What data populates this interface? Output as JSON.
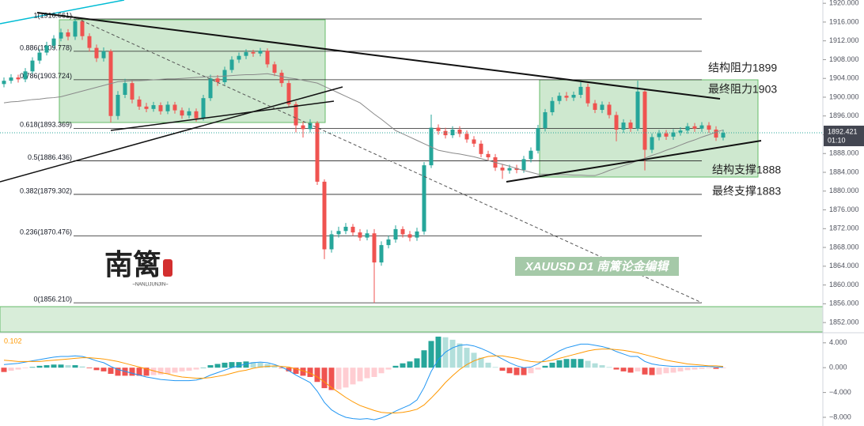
{
  "chart_data": [
    {
      "type": "candlestick",
      "up_color": "#26a69a",
      "down_color": "#ef5350",
      "ma_color": "#8a8a8a",
      "ylim": [
        1850,
        1920.7
      ],
      "yticks": [
        {
          "value": 1920,
          "label": "1920.000"
        },
        {
          "value": 1916,
          "label": "1916.000"
        },
        {
          "value": 1912,
          "label": "1912.000"
        },
        {
          "value": 1908,
          "label": "1908.000"
        },
        {
          "value": 1904,
          "label": "1904.000"
        },
        {
          "value": 1900,
          "label": "1900.000"
        },
        {
          "value": 1896,
          "label": "1896.000"
        },
        {
          "value": 1892,
          "label": "1892.000"
        },
        {
          "value": 1888,
          "label": "1888.000"
        },
        {
          "value": 1884,
          "label": "1884.000"
        },
        {
          "value": 1880,
          "label": "1880.000"
        },
        {
          "value": 1876,
          "label": "1876.000"
        },
        {
          "value": 1872,
          "label": "1872.000"
        },
        {
          "value": 1868,
          "label": "1868.000"
        },
        {
          "value": 1864,
          "label": "1864.000"
        },
        {
          "value": 1860,
          "label": "1860.000"
        },
        {
          "value": 1856,
          "label": "1856.000"
        },
        {
          "value": 1852,
          "label": "1852.000"
        }
      ],
      "last_price": 1892.421,
      "countdown": "01:10",
      "fib_levels": [
        {
          "label": "1(1916.661)",
          "price": 1916.661
        },
        {
          "label": "0.886(1909.778)",
          "price": 1909.778
        },
        {
          "label": "0.786(1903.724)",
          "price": 1903.724
        },
        {
          "label": "0.618(1893.369)",
          "price": 1893.369
        },
        {
          "label": "0.5(1886.436)",
          "price": 1886.436
        },
        {
          "label": "0.382(1879.302)",
          "price": 1879.302
        },
        {
          "label": "0.236(1870.476)",
          "price": 1870.476
        },
        {
          "label": "0(1856.210)",
          "price": 1856.21
        }
      ],
      "annotations": [
        "结构阻力1899",
        "最终阻力1903",
        "结构支撑1888",
        "最终支撑1883"
      ],
      "watermark": "XAUUSD  D1  南篱论金编辑",
      "logo": "南篱",
      "logo_sub": "~NANLIJUNJIN~",
      "open": [
        1902.8,
        1903.5,
        1904.2,
        1903.8,
        1905.5,
        1907.8,
        1909.5,
        1911,
        1912.5,
        1913.8,
        1912.9,
        1916.2,
        1913,
        1910.5,
        1908.3,
        1909.8,
        1896,
        1900.5,
        1903,
        1899.5,
        1898,
        1897.5,
        1898.3,
        1897,
        1898.4,
        1897.2,
        1896.1,
        1897,
        1895.5,
        1899.8,
        1904,
        1903.2,
        1905.8,
        1908,
        1908.8,
        1909.6,
        1909.3,
        1909.9,
        1907,
        1905.2,
        1903,
        1898.5,
        1894,
        1893.2,
        1894.5,
        1882,
        1867.6,
        1870.8,
        1871.5,
        1872.4,
        1871.2,
        1870.1,
        1871,
        1864.8,
        1868.5,
        1869.7,
        1871.9,
        1870.8,
        1870.1,
        1871.4,
        1885.5,
        1893.5,
        1892.8,
        1891.9,
        1893.1,
        1892.2,
        1891,
        1890.1,
        1887.9,
        1887.2,
        1885,
        1884.4,
        1884.9,
        1884.5,
        1886.8,
        1888.6,
        1893.4,
        1896.8,
        1899.2,
        1900.3,
        1899.9,
        1900.5,
        1902.2,
        1898.7,
        1897.3,
        1898.4,
        1896.2,
        1893.1,
        1894.6,
        1893.3,
        1901.2,
        1888.8,
        1891.5,
        1892.3,
        1891.6,
        1892.5,
        1892.9,
        1893.8,
        1893.3,
        1894,
        1893.1,
        1891.4
      ],
      "high": [
        1904.2,
        1904.9,
        1904.8,
        1906.2,
        1908.5,
        1910.3,
        1911.8,
        1913.2,
        1914.6,
        1914.5,
        1916.661,
        1916.5,
        1913.6,
        1911.2,
        1910.6,
        1910.2,
        1901.3,
        1903.9,
        1903.6,
        1900.2,
        1898.8,
        1899,
        1898.9,
        1899.1,
        1899,
        1897.8,
        1897.7,
        1897.6,
        1900.5,
        1904.8,
        1904.7,
        1906.5,
        1908.7,
        1909.5,
        1910.2,
        1910.1,
        1910.5,
        1910.4,
        1907.6,
        1905.8,
        1903.6,
        1899.1,
        1894.8,
        1895.3,
        1894.9,
        1882.5,
        1871.6,
        1872.4,
        1873.2,
        1873,
        1871.9,
        1871.8,
        1871.9,
        1869.3,
        1870.5,
        1872.7,
        1872.5,
        1871.5,
        1872.2,
        1886.2,
        1896.3,
        1894.2,
        1893.5,
        1893.8,
        1893.8,
        1892.9,
        1891.7,
        1890.8,
        1888.6,
        1887.9,
        1885.7,
        1885.6,
        1885.6,
        1887.5,
        1889.3,
        1894.1,
        1897.5,
        1900,
        1901,
        1901.1,
        1901.2,
        1903.2,
        1902.9,
        1899.4,
        1899.1,
        1899,
        1896.9,
        1895.3,
        1895.2,
        1903.5,
        1901.8,
        1892.3,
        1893,
        1893,
        1893.2,
        1893.6,
        1894.5,
        1894.5,
        1894.7,
        1894.7,
        1893.8,
        1893.1
      ],
      "low": [
        1902.1,
        1902.9,
        1903.1,
        1903.2,
        1905,
        1907.1,
        1908.9,
        1910.3,
        1911.9,
        1912.1,
        1912.2,
        1912.2,
        1909.7,
        1907.5,
        1907.6,
        1894.6,
        1895.2,
        1899.8,
        1898.7,
        1897.3,
        1896.8,
        1896.9,
        1896.3,
        1896.4,
        1896.5,
        1895.4,
        1895.5,
        1894.8,
        1895,
        1899.2,
        1902.4,
        1902.6,
        1905.2,
        1907.3,
        1908.1,
        1908.6,
        1908.7,
        1906.3,
        1904.5,
        1902.2,
        1897.8,
        1892.5,
        1891.4,
        1892.5,
        1881.3,
        1865.5,
        1866.9,
        1870.1,
        1870.8,
        1870.5,
        1869.4,
        1869.5,
        1856.21,
        1864.1,
        1867.8,
        1869,
        1870.1,
        1869.3,
        1869.4,
        1870.7,
        1884.9,
        1892,
        1891.2,
        1891.3,
        1891.5,
        1890.3,
        1889.4,
        1887.2,
        1886.5,
        1884.3,
        1882.6,
        1883.7,
        1883.8,
        1883.9,
        1886.1,
        1888,
        1892.7,
        1896.1,
        1898.5,
        1899.2,
        1899.2,
        1899.8,
        1898,
        1896.6,
        1896.6,
        1895.5,
        1890.6,
        1892.4,
        1892.6,
        1892.8,
        1884.4,
        1888.1,
        1890.8,
        1890.9,
        1890.9,
        1891.8,
        1892.2,
        1892.6,
        1892.6,
        1892.4,
        1890.7,
        1890.8
      ],
      "close": [
        1903.5,
        1904.2,
        1903.8,
        1905.5,
        1907.8,
        1909.5,
        1911,
        1912.5,
        1913.8,
        1912.9,
        1916.2,
        1913,
        1910.5,
        1908.3,
        1909.8,
        1896,
        1900.5,
        1903,
        1899.5,
        1898,
        1897.5,
        1898.3,
        1897,
        1898.4,
        1897.2,
        1896.1,
        1897,
        1895.5,
        1899.8,
        1904,
        1903.2,
        1905.8,
        1908,
        1908.8,
        1909.6,
        1909.3,
        1909.9,
        1907,
        1905.2,
        1903,
        1898.5,
        1894,
        1893.2,
        1894.5,
        1882,
        1867.6,
        1870.8,
        1871.5,
        1872.4,
        1871.2,
        1870.1,
        1871,
        1864.8,
        1868.5,
        1869.7,
        1871.9,
        1870.8,
        1870.1,
        1871.4,
        1885.5,
        1893.5,
        1892.8,
        1891.9,
        1893.1,
        1892.2,
        1891,
        1890.1,
        1887.9,
        1887.2,
        1885,
        1884.4,
        1884.9,
        1884.5,
        1886.8,
        1888.6,
        1893.4,
        1896.8,
        1899.2,
        1900.3,
        1899.9,
        1900.5,
        1902.2,
        1898.7,
        1897.3,
        1898.4,
        1896.2,
        1893.1,
        1894.6,
        1893.3,
        1901.2,
        1888.8,
        1891.5,
        1892.3,
        1891.6,
        1892.5,
        1892.9,
        1893.8,
        1893.3,
        1894,
        1893.1,
        1891.4,
        1892.4
      ],
      "ma_values": [
        1898.8,
        1899,
        1899.1,
        1899.3,
        1899.5,
        1899.6,
        1899.8,
        1899.9,
        1900.1,
        1900.5,
        1900.9,
        1901.3,
        1901.7,
        1902.1,
        1902.5,
        1902.9,
        1903.3,
        1903.4,
        1903.5,
        1903.5,
        1903.6,
        1903.7,
        1903.8,
        1903.9,
        1903.9,
        1904,
        1904.1,
        1904.2,
        1904.3,
        1904.4,
        1904.4,
        1904.5,
        1904.6,
        1904.7,
        1904.8,
        1904.8,
        1904.9,
        1905,
        1904.7,
        1904.4,
        1904.1,
        1903.9,
        1903.6,
        1903.3,
        1903,
        1902.3,
        1901.6,
        1900.9,
        1900.2,
        1899.5,
        1898.8,
        1897.6,
        1896.4,
        1895.3,
        1894.1,
        1892.9,
        1892.2,
        1891.5,
        1890.8,
        1890.1,
        1889.4,
        1888.7,
        1888.4,
        1888.1,
        1887.9,
        1887.6,
        1887.3,
        1886.9,
        1886.5,
        1886.1,
        1885.7,
        1885.3,
        1884.8,
        1884.4,
        1884,
        1883.6,
        1883.6,
        1883.5,
        1883.5,
        1883.5,
        1883.4,
        1883.4,
        1883.3,
        1883.3,
        1883.8,
        1884.4,
        1884.9,
        1885.4,
        1885.9,
        1886.5,
        1887,
        1887.6,
        1888.1,
        1888.7,
        1889.2,
        1889.8,
        1890.4,
        1890.9,
        1891.5,
        1892,
        1892.6,
        1893
      ]
    },
    {
      "type": "macd",
      "value_label": 0.102,
      "ylim": [
        -9.4,
        5.5
      ],
      "yticks": [
        {
          "value": 4,
          "label": "4.000"
        },
        {
          "value": 0,
          "label": "0.000"
        },
        {
          "value": -4,
          "label": "−4.000"
        },
        {
          "value": -8,
          "label": "−8.000"
        }
      ],
      "macd_color": "#2196f3",
      "signal_color": "#ff9800",
      "hist_colors": [
        "#26a69a",
        "#b2dfdb",
        "#ffcdd2",
        "#ef5350"
      ],
      "macd": [
        0.5,
        0.6,
        0.7,
        0.9,
        1.1,
        1.3,
        1.5,
        1.7,
        1.8,
        1.8,
        1.9,
        1.8,
        1.5,
        1.1,
        0.8,
        0.2,
        -0.3,
        -0.6,
        -0.9,
        -1.2,
        -1.5,
        -1.7,
        -1.9,
        -2,
        -2.1,
        -2.1,
        -2.1,
        -2,
        -1.7,
        -1.2,
        -0.8,
        -0.4,
        0,
        0.3,
        0.6,
        0.8,
        0.9,
        0.8,
        0.5,
        0.1,
        -0.5,
        -1.2,
        -1.8,
        -2.4,
        -3.8,
        -5.6,
        -6.8,
        -7.5,
        -8,
        -8.2,
        -8.3,
        -8.2,
        -8.4,
        -8.1,
        -7.6,
        -7,
        -6.5,
        -6,
        -5.2,
        -3.2,
        -0.6,
        1.3,
        2.5,
        3.2,
        3.6,
        3.7,
        3.5,
        3.1,
        2.6,
        2,
        1.4,
        0.8,
        0.3,
        0,
        0.1,
        0.6,
        1.3,
        2,
        2.7,
        3.2,
        3.5,
        3.8,
        3.8,
        3.6,
        3.4,
        3.1,
        2.6,
        2.2,
        1.8,
        1.8,
        1,
        0.6,
        0.4,
        0.3,
        0.2,
        0.2,
        0.2,
        0.2,
        0.2,
        0.2,
        0.1,
        0.1
      ],
      "signal": [
        1.2,
        1.1,
        1,
        1,
        1,
        1,
        1.1,
        1.2,
        1.3,
        1.4,
        1.5,
        1.6,
        1.6,
        1.5,
        1.4,
        1.2,
        1,
        0.7,
        0.4,
        0.1,
        -0.2,
        -0.5,
        -0.8,
        -1,
        -1.3,
        -1.5,
        -1.6,
        -1.7,
        -1.7,
        -1.6,
        -1.4,
        -1.2,
        -0.9,
        -0.6,
        -0.4,
        -0.1,
        0.1,
        0.2,
        0.3,
        0.2,
        0.1,
        -0.2,
        -0.5,
        -0.9,
        -1.5,
        -2.3,
        -3.2,
        -4,
        -4.8,
        -5.5,
        -6.1,
        -6.5,
        -6.9,
        -7.2,
        -7.3,
        -7.3,
        -7.2,
        -7,
        -6.7,
        -6,
        -4.9,
        -3.7,
        -2.4,
        -1.3,
        -0.3,
        0.5,
        1.1,
        1.5,
        1.8,
        1.9,
        1.9,
        1.7,
        1.5,
        1.2,
        1,
        0.9,
        1,
        1.2,
        1.5,
        1.8,
        2.1,
        2.4,
        2.7,
        2.9,
        3,
        3,
        2.9,
        2.8,
        2.6,
        2.4,
        2.1,
        1.8,
        1.5,
        1.2,
        1,
        0.8,
        0.6,
        0.5,
        0.4,
        0.3,
        0.3,
        0.2
      ],
      "hist": [
        -0.7,
        -0.5,
        -0.3,
        -0.1,
        0.1,
        0.3,
        0.4,
        0.5,
        0.5,
        0.4,
        0.4,
        0.2,
        -0.1,
        -0.4,
        -0.6,
        -1,
        -1.3,
        -1.3,
        -1.3,
        -1.3,
        -1.3,
        -1.2,
        -1.1,
        -1,
        -0.8,
        -0.6,
        -0.5,
        -0.3,
        0,
        0.4,
        0.6,
        0.8,
        0.9,
        0.9,
        1,
        0.9,
        0.8,
        0.6,
        0.2,
        -0.1,
        -0.6,
        -1,
        -1.3,
        -1.5,
        -2.3,
        -3.3,
        -3.6,
        -3.5,
        -3.2,
        -2.7,
        -2.2,
        -1.7,
        -1.5,
        -0.9,
        -0.3,
        0.3,
        0.7,
        1,
        1.5,
        2.8,
        4.3,
        5,
        4.9,
        4.5,
        3.9,
        3.2,
        2.4,
        1.6,
        0.8,
        0.1,
        -0.5,
        -0.9,
        -1.2,
        -1.2,
        -0.9,
        -0.3,
        0.3,
        0.8,
        1.2,
        1.4,
        1.4,
        1.4,
        1.1,
        0.7,
        0.4,
        0.1,
        -0.3,
        -0.6,
        -0.8,
        -0.6,
        -1.1,
        -1.2,
        -1.1,
        -0.9,
        -0.8,
        -0.6,
        -0.4,
        -0.3,
        -0.2,
        -0.1,
        -0.2,
        -0.1
      ]
    }
  ]
}
